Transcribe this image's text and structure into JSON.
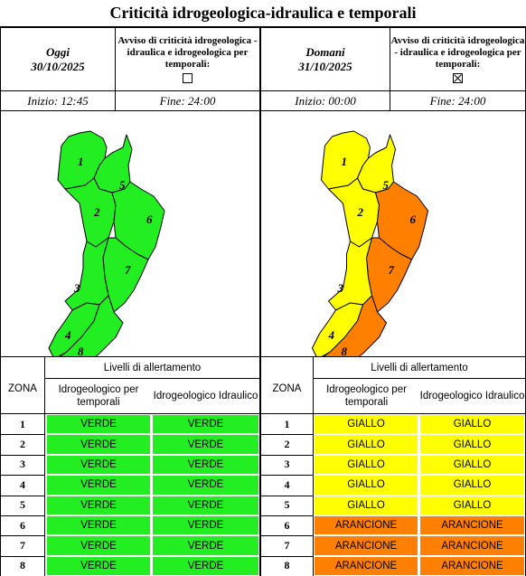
{
  "title": "Criticità idrogeologica-idraulica e temporali",
  "colors": {
    "VERDE": "#22ee22",
    "GIALLO": "#ffff00",
    "ARANCIONE": "#ff8000"
  },
  "today": {
    "label": "Oggi",
    "date": "30/10/2025",
    "avviso_text": "Avviso di criticità idrogeologica - idraulica e idrogeologica per temporali:",
    "avviso_checked": false,
    "start": "Inizio: 12:45",
    "end": "Fine: 24:00",
    "levels_header": "Livelli di allertamento",
    "zona_header": "ZONA",
    "col1_header": "Idrogeologico per temporali",
    "col2_header": "Idrogeologico Idraulico",
    "rows": [
      {
        "zone": "1",
        "temporali": "VERDE",
        "idraulico": "VERDE"
      },
      {
        "zone": "2",
        "temporali": "VERDE",
        "idraulico": "VERDE"
      },
      {
        "zone": "3",
        "temporali": "VERDE",
        "idraulico": "VERDE"
      },
      {
        "zone": "4",
        "temporali": "VERDE",
        "idraulico": "VERDE"
      },
      {
        "zone": "5",
        "temporali": "VERDE",
        "idraulico": "VERDE"
      },
      {
        "zone": "6",
        "temporali": "VERDE",
        "idraulico": "VERDE"
      },
      {
        "zone": "7",
        "temporali": "VERDE",
        "idraulico": "VERDE"
      },
      {
        "zone": "8",
        "temporali": "VERDE",
        "idraulico": "VERDE"
      }
    ]
  },
  "tomorrow": {
    "label": "Domani",
    "date": "31/10/2025",
    "avviso_text": "Avviso di criticità idrogeologica - idraulica e idrogeologica per temporali:",
    "avviso_checked": true,
    "start": "Inizio: 00:00",
    "end": "Fine: 24:00",
    "levels_header": "Livelli di allertamento",
    "zona_header": "ZONA",
    "col1_header": "Idrogeologico per temporali",
    "col2_header": "Idrogeologico Idraulico",
    "rows": [
      {
        "zone": "1",
        "temporali": "GIALLO",
        "idraulico": "GIALLO"
      },
      {
        "zone": "2",
        "temporali": "GIALLO",
        "idraulico": "GIALLO"
      },
      {
        "zone": "3",
        "temporali": "GIALLO",
        "idraulico": "GIALLO"
      },
      {
        "zone": "4",
        "temporali": "GIALLO",
        "idraulico": "GIALLO"
      },
      {
        "zone": "5",
        "temporali": "GIALLO",
        "idraulico": "GIALLO"
      },
      {
        "zone": "6",
        "temporali": "ARANCIONE",
        "idraulico": "ARANCIONE"
      },
      {
        "zone": "7",
        "temporali": "ARANCIONE",
        "idraulico": "ARANCIONE"
      },
      {
        "zone": "8",
        "temporali": "ARANCIONE",
        "idraulico": "ARANCIONE"
      }
    ]
  }
}
